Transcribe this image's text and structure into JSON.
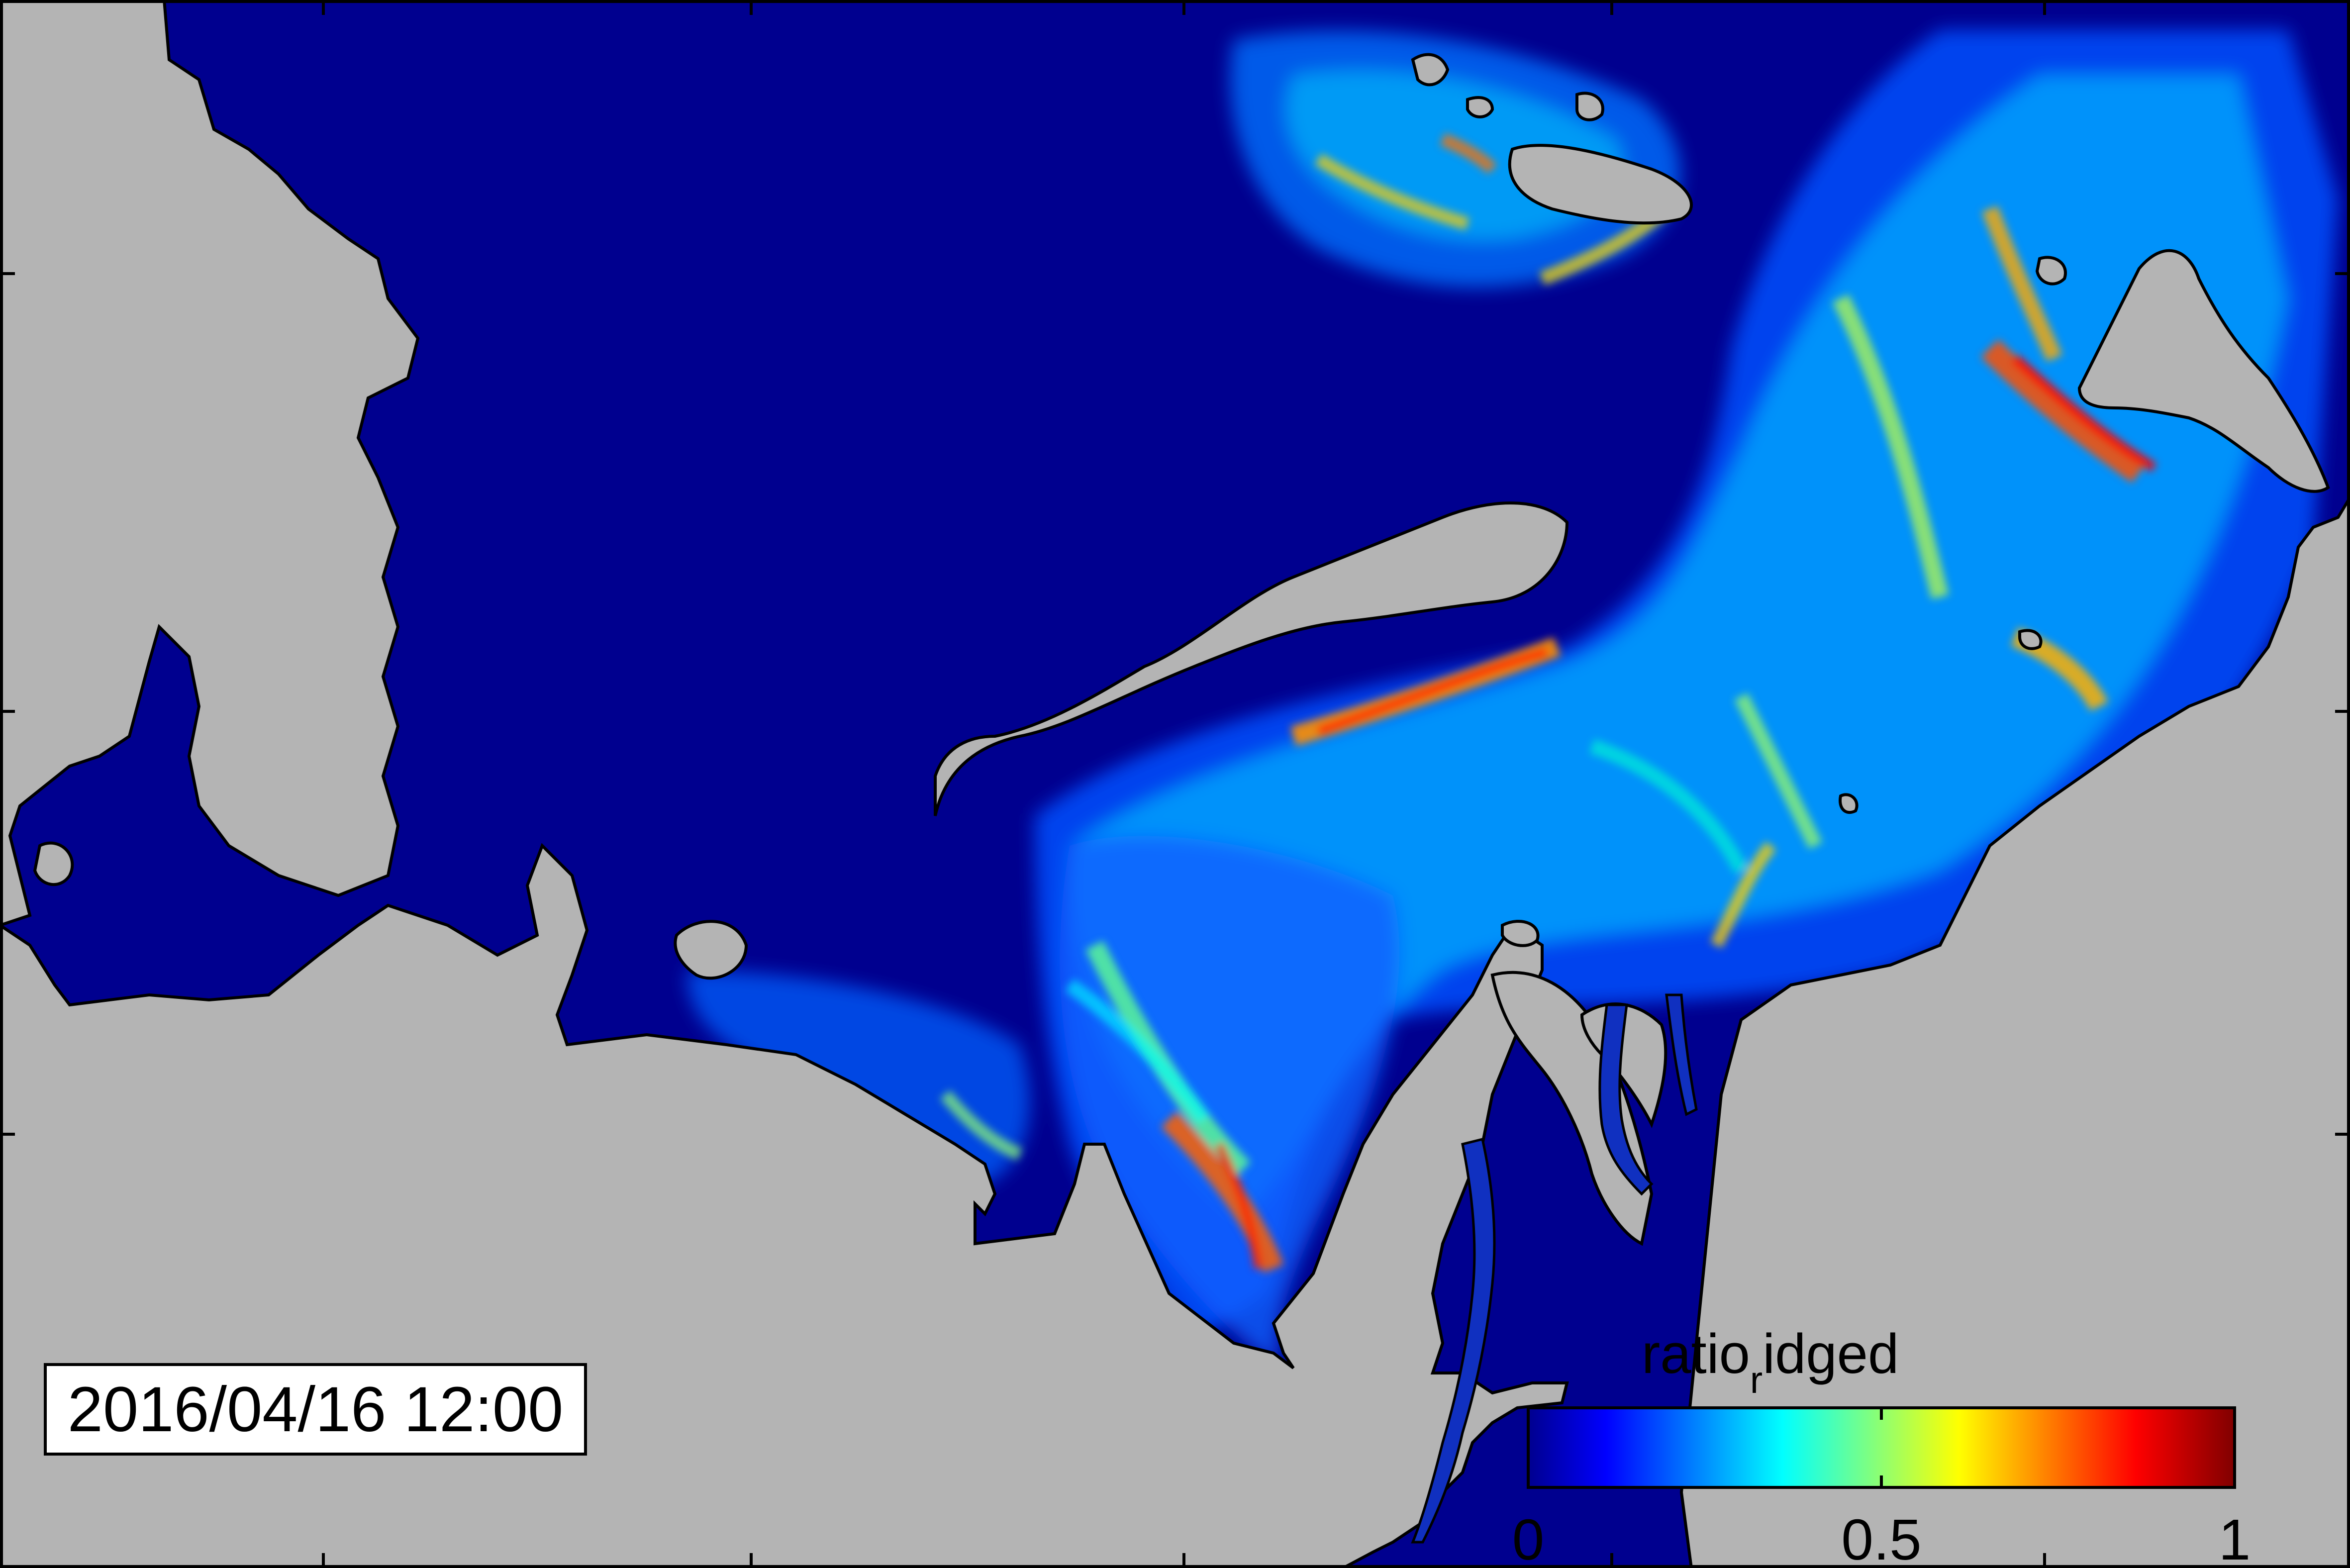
{
  "timestamp": "2016/04/16 12:00",
  "colorbar": {
    "title_main": "ratio",
    "title_sub": "r",
    "title_rest": "idged",
    "min": 0,
    "max": 1,
    "ticks": [
      {
        "value": 0,
        "label": "0"
      },
      {
        "value": 0.5,
        "label": "0.5"
      },
      {
        "value": 1,
        "label": "1"
      }
    ],
    "colormap": "jet"
  },
  "colors": {
    "land": "#b4b4b4",
    "sea_ice_zero": "#00008f",
    "frame": "#000000"
  },
  "map": {
    "variable": "ratio_ridged",
    "land_mask": true
  }
}
